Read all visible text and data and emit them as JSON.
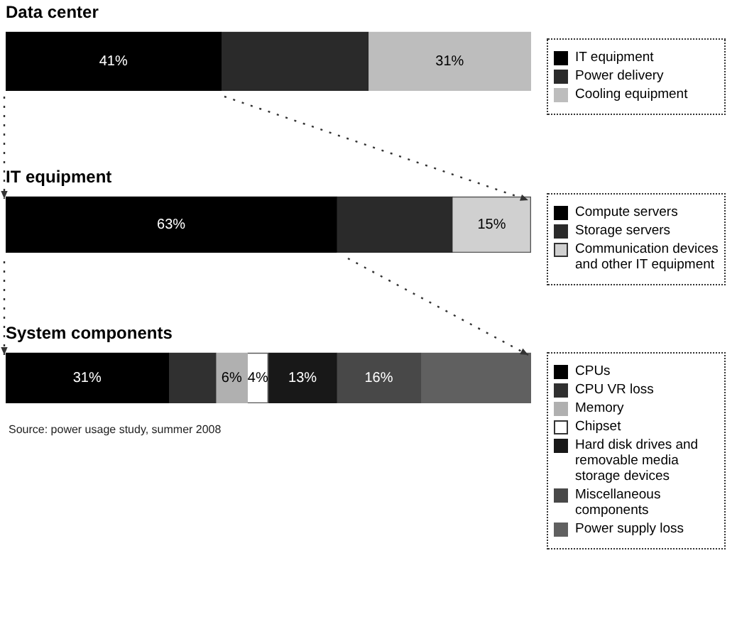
{
  "chart_data": [
    {
      "type": "bar",
      "title": "Data center",
      "orientation": "horizontal",
      "stacked": true,
      "categories": [
        null
      ],
      "xlim": [
        0,
        100
      ],
      "tick_labels": false,
      "legend": "right",
      "series": [
        {
          "name": "IT equipment",
          "color": "#000000",
          "values": [
            41
          ],
          "value_labels": [
            "41%"
          ]
        },
        {
          "name": "Power delivery",
          "color": "#2a2a2a",
          "values": [
            28
          ],
          "value_labels": [
            null
          ]
        },
        {
          "name": "Cooling equipment",
          "color": "#bdbdbd",
          "values": [
            31
          ],
          "value_labels": [
            "31%"
          ]
        }
      ]
    },
    {
      "type": "bar",
      "title": "IT equipment",
      "orientation": "horizontal",
      "stacked": true,
      "categories": [
        null
      ],
      "xlim": [
        0,
        100
      ],
      "tick_labels": false,
      "legend": "right",
      "series": [
        {
          "name": "Compute servers",
          "color": "#000000",
          "values": [
            63
          ],
          "value_labels": [
            "63%"
          ]
        },
        {
          "name": "Storage servers",
          "color": "#2a2a2a",
          "values": [
            22
          ],
          "value_labels": [
            null
          ]
        },
        {
          "name": "Communication devices and other IT equipment",
          "color": "#d0d0d0",
          "values": [
            15
          ],
          "value_labels": [
            "15%"
          ]
        }
      ]
    },
    {
      "type": "bar",
      "title": "System components",
      "orientation": "horizontal",
      "stacked": true,
      "categories": [
        null
      ],
      "xlim": [
        0,
        100
      ],
      "tick_labels": false,
      "legend": "right",
      "annotations": [
        "Source: power usage study, summer 2008"
      ],
      "series": [
        {
          "name": "CPUs",
          "color": "#000000",
          "values": [
            31
          ],
          "value_labels": [
            "31%"
          ]
        },
        {
          "name": "CPU VR loss",
          "color": "#303030",
          "values": [
            9
          ],
          "value_labels": [
            null
          ]
        },
        {
          "name": "Memory",
          "color": "#b0b0b0",
          "values": [
            6
          ],
          "value_labels": [
            "6%"
          ]
        },
        {
          "name": "Chipset",
          "color": "#ffffff",
          "values": [
            4
          ],
          "value_labels": [
            "4%"
          ]
        },
        {
          "name": "Hard disk drives and removable media storage devices",
          "color": "#181818",
          "values": [
            13
          ],
          "value_labels": [
            "13%"
          ]
        },
        {
          "name": "Miscellaneous components",
          "color": "#484848",
          "values": [
            16
          ],
          "value_labels": [
            "16%"
          ]
        },
        {
          "name": "Power supply loss",
          "color": "#606060",
          "values": [
            21
          ],
          "value_labels": [
            null
          ]
        }
      ]
    }
  ]
}
